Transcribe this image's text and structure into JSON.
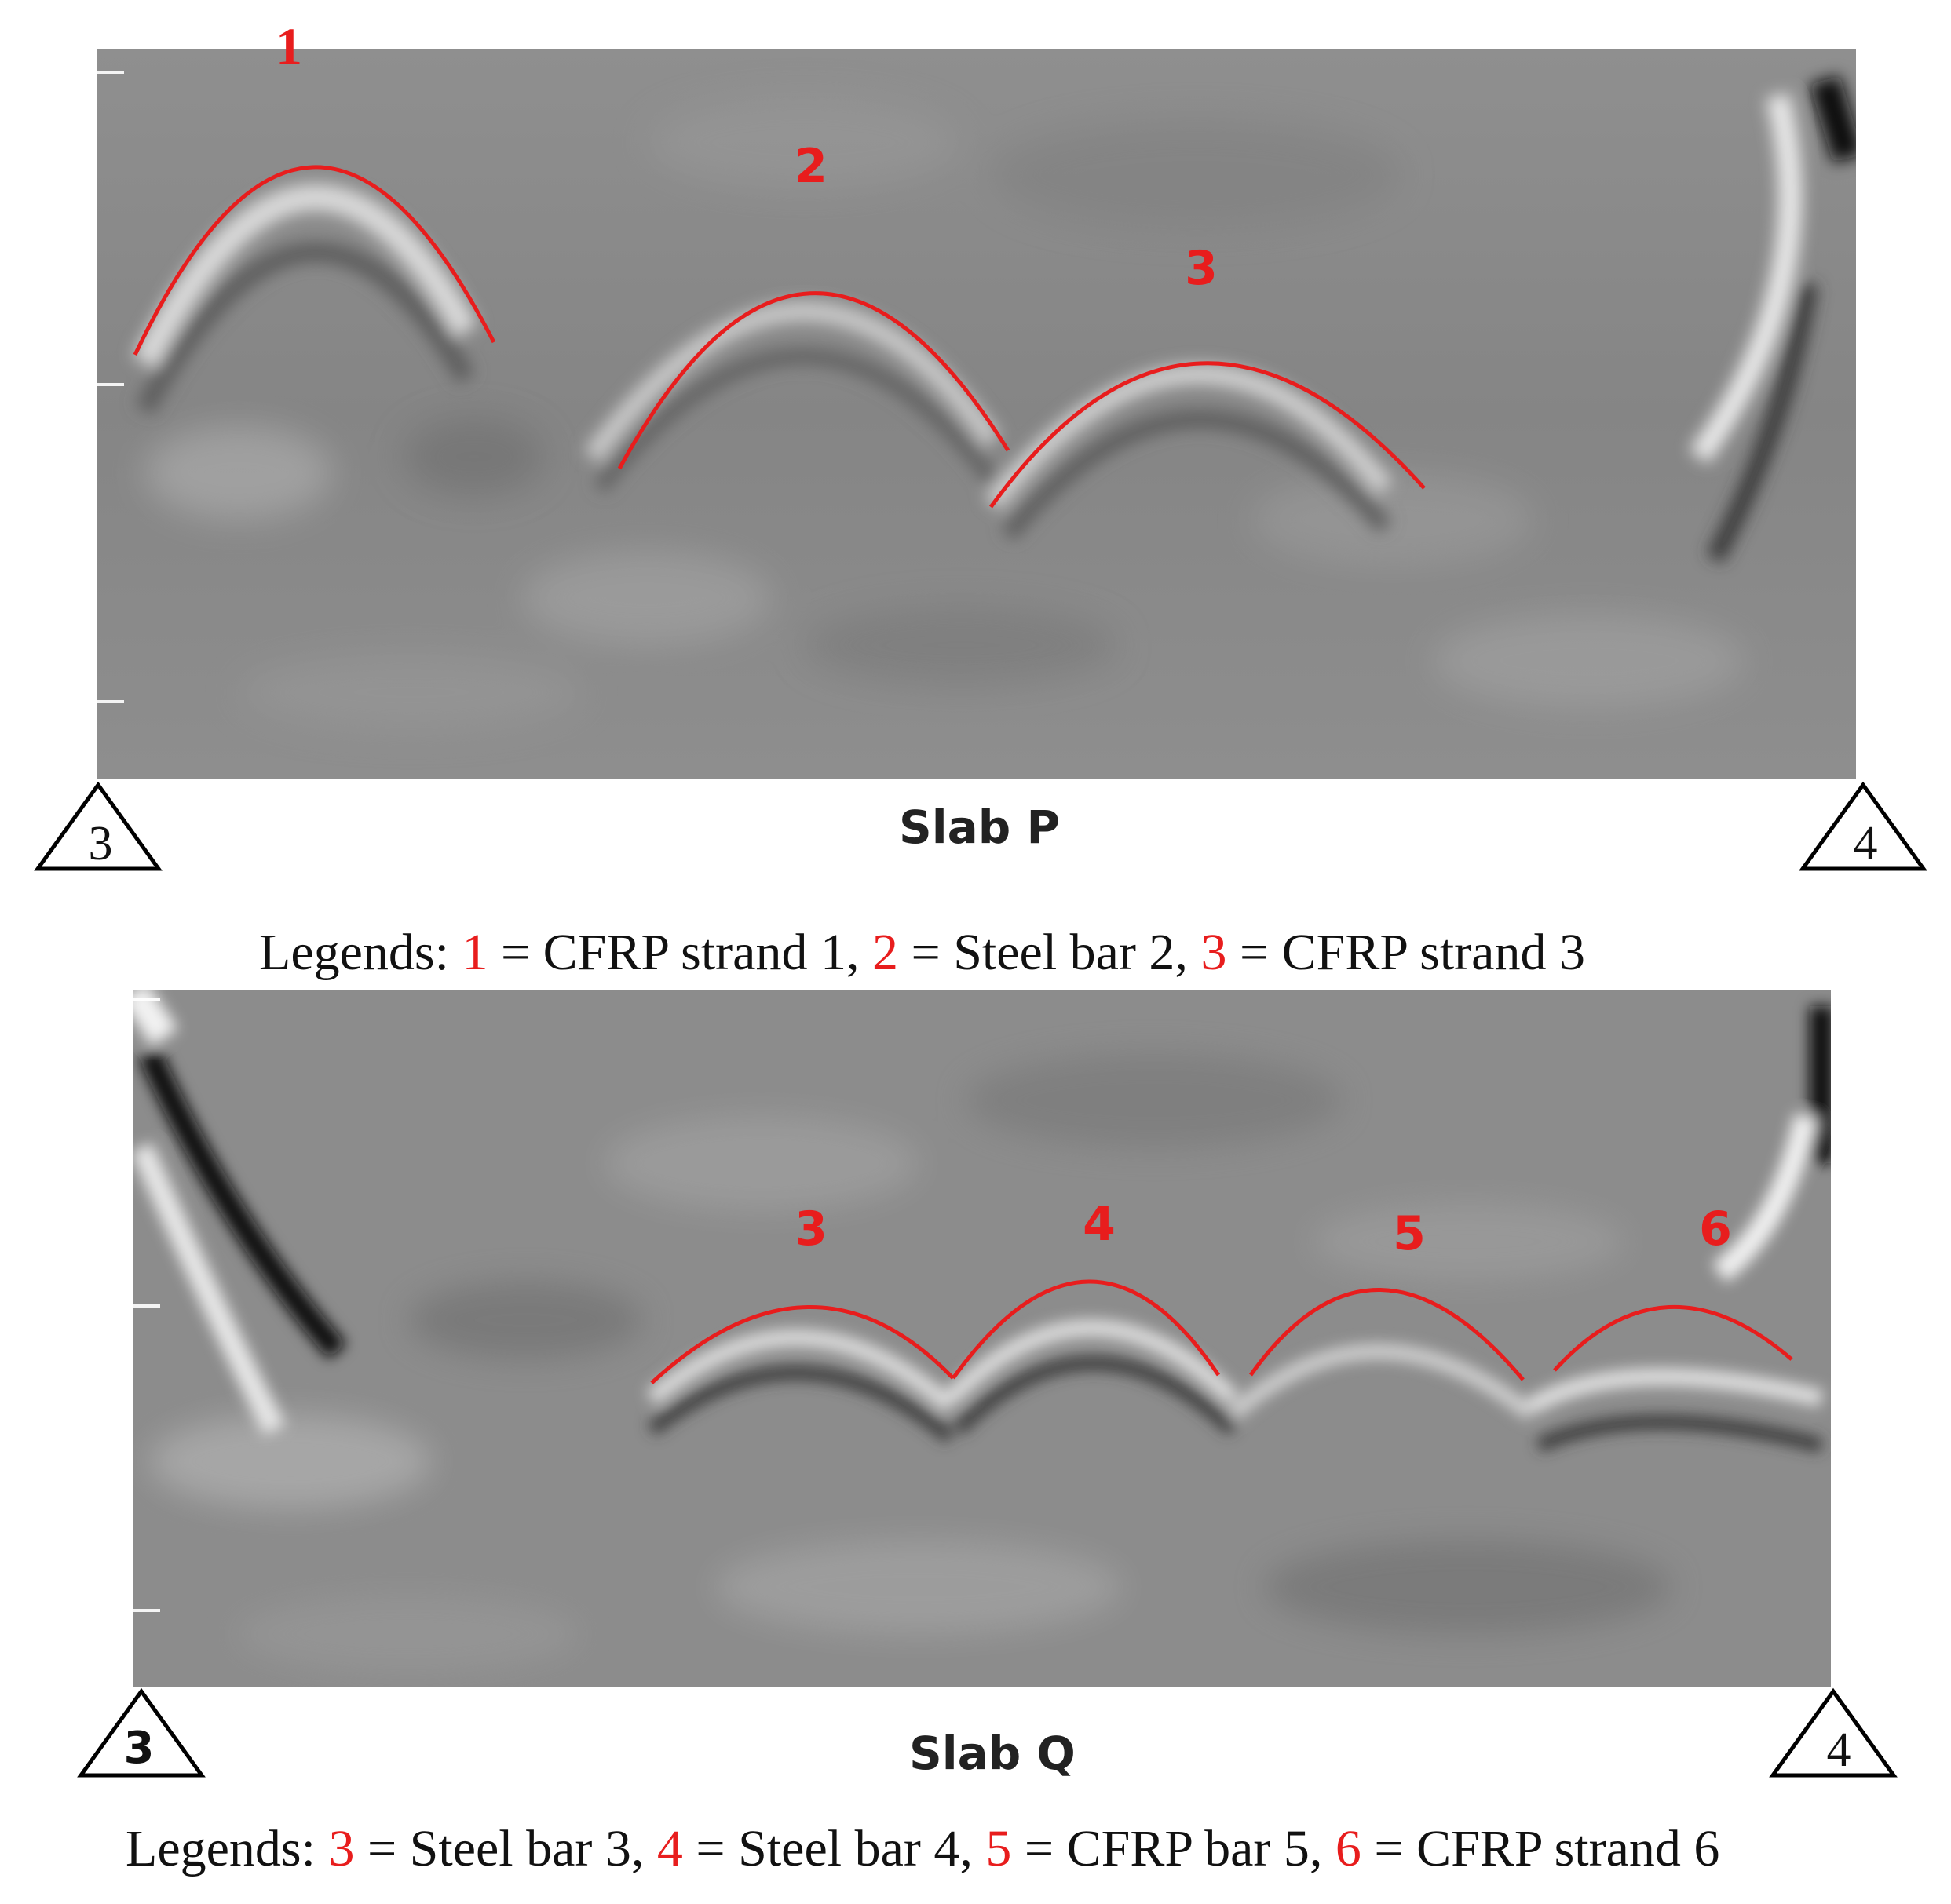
{
  "panel_p": {
    "title": "Slab P",
    "support_left": "3",
    "support_right": "4",
    "markers": [
      "1",
      "2",
      "3"
    ],
    "legend": {
      "prefix": "Legends: ",
      "entries": [
        {
          "num": "1",
          "text": " = CFRP strand 1,"
        },
        {
          "num": "2",
          "text": " = Steel bar 2,"
        },
        {
          "num": "3",
          "text": " = CFRP strand 3"
        }
      ]
    }
  },
  "panel_q": {
    "title": "Slab Q",
    "support_left": "3",
    "support_right": "4",
    "markers": [
      "3",
      "4",
      "5",
      "6"
    ],
    "legend": {
      "prefix": "Legends: ",
      "entries": [
        {
          "num": "3",
          "text": " = Steel bar 3,"
        },
        {
          "num": "4",
          "text": " = Steel bar 4,"
        },
        {
          "num": "5",
          "text": " = CFRP bar 5,"
        },
        {
          "num": "6",
          "text": " = CFRP strand 6"
        }
      ]
    }
  },
  "colors": {
    "annotation": "#e81d1d",
    "scan_gray": "#8a8a8a"
  }
}
